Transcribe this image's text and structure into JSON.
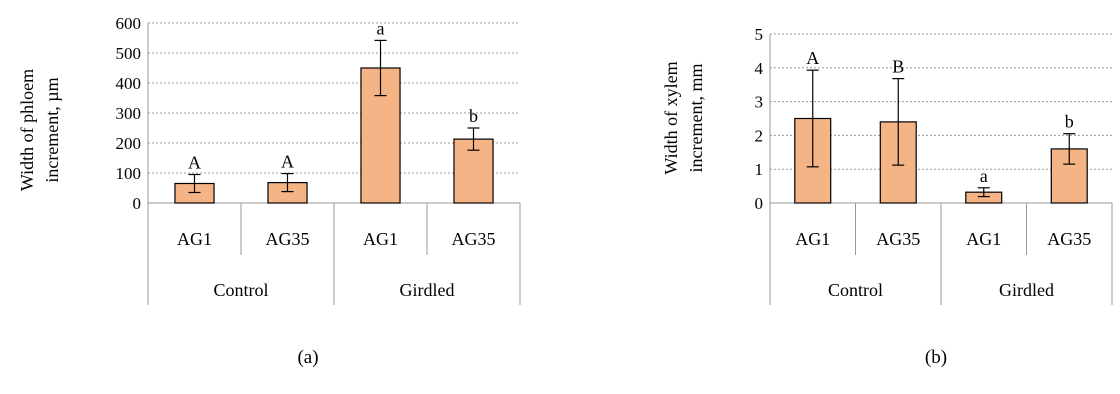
{
  "chart_data": [
    {
      "type": "bar",
      "panel_label": "(a)",
      "ylabel_lines": [
        "Width of phloem",
        "increment, µm"
      ],
      "ylim": [
        0,
        600
      ],
      "yticks": [
        "0",
        "100",
        "200",
        "300",
        "400",
        "500",
        "600"
      ],
      "categories": [
        "AG1",
        "AG35",
        "AG1",
        "AG35"
      ],
      "groups": [
        "Control",
        "Girdled"
      ],
      "values": [
        65,
        68,
        450,
        213
      ],
      "errors": [
        30,
        30,
        92,
        37
      ],
      "annotations": [
        "A",
        "A",
        "a",
        "b"
      ],
      "grid": true
    },
    {
      "type": "bar",
      "panel_label": "(b)",
      "ylabel_lines": [
        "Width of xylem",
        "increment, mm"
      ],
      "ylim": [
        0,
        5
      ],
      "yticks": [
        "0",
        "1",
        "2",
        "3",
        "4",
        "5"
      ],
      "categories": [
        "AG1",
        "AG35",
        "AG1",
        "AG35"
      ],
      "groups": [
        "Control",
        "Girdled"
      ],
      "values": [
        2.5,
        2.4,
        0.32,
        1.6
      ],
      "errors": [
        1.43,
        1.28,
        0.13,
        0.45
      ],
      "annotations": [
        "A",
        "B",
        "a",
        "b"
      ],
      "grid": true
    }
  ]
}
